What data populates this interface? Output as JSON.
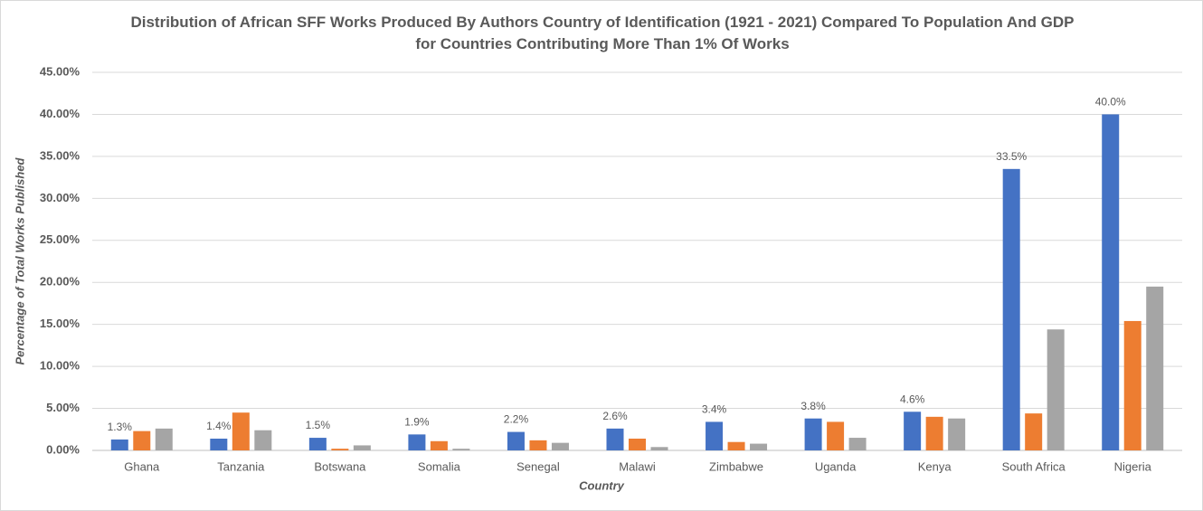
{
  "chart_data": {
    "type": "bar",
    "title": "Distribution of African SFF Works Produced By Authors Country of Identification (1921 - 2021) Compared To Population And GDP for Countries Contributing More Than 1% Of Works",
    "x_label": "Country",
    "y_label": "Percentage  of Total Works Published",
    "categories": [
      "Ghana",
      "Tanzania",
      "Botswana",
      "Somalia",
      "Senegal",
      "Malawi",
      "Zimbabwe",
      "Uganda",
      "Kenya",
      "South Africa",
      "Nigeria"
    ],
    "series": [
      {
        "color": "#4472c4",
        "values": [
          1.3,
          1.4,
          1.5,
          1.9,
          2.2,
          2.6,
          3.4,
          3.8,
          4.6,
          33.5,
          40.0
        ],
        "value_labels": [
          "1.3%",
          "1.4%",
          "1.5%",
          "1.9%",
          "2.2%",
          "2.6%",
          "3.4%",
          "3.8%",
          "4.6%",
          "33.5%",
          "40.0%"
        ]
      },
      {
        "color": "#ed7d31",
        "values": [
          2.3,
          4.5,
          0.2,
          1.1,
          1.2,
          1.4,
          1.0,
          3.4,
          4.0,
          4.4,
          15.4
        ]
      },
      {
        "color": "#a5a5a5",
        "values": [
          2.6,
          2.4,
          0.6,
          0.2,
          0.9,
          0.4,
          0.8,
          1.5,
          3.8,
          14.4,
          19.5
        ]
      }
    ],
    "ylim": [
      0,
      45
    ],
    "yticks": [
      {
        "value": 0,
        "label": "0.00%"
      },
      {
        "value": 5,
        "label": "5.00%"
      },
      {
        "value": 10,
        "label": "10.00%"
      },
      {
        "value": 15,
        "label": "15.00%"
      },
      {
        "value": 20,
        "label": "20.00%"
      },
      {
        "value": 25,
        "label": "25.00%"
      },
      {
        "value": 30,
        "label": "30.00%"
      },
      {
        "value": 35,
        "label": "35.00%"
      },
      {
        "value": 40,
        "label": "40.00%"
      },
      {
        "value": 45,
        "label": "45.00%"
      }
    ],
    "grid": true
  }
}
